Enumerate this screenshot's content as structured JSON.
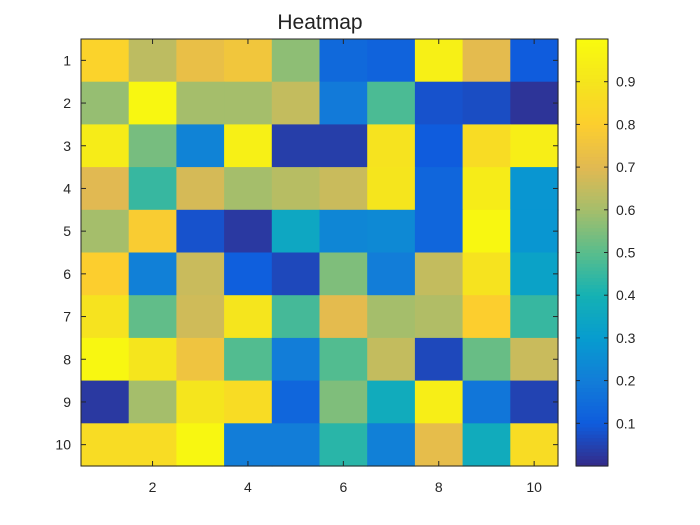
{
  "chart_data": {
    "type": "heatmap",
    "title": "Heatmap",
    "x": [
      1,
      2,
      3,
      4,
      5,
      6,
      7,
      8,
      9,
      10
    ],
    "y": [
      1,
      2,
      3,
      4,
      5,
      6,
      7,
      8,
      9,
      10
    ],
    "x_tick_labels": [
      "2",
      "4",
      "6",
      "8",
      "10"
    ],
    "y_tick_labels": [
      "1",
      "2",
      "3",
      "4",
      "5",
      "6",
      "7",
      "8",
      "9",
      "10"
    ],
    "values": [
      [
        0.82,
        0.64,
        0.73,
        0.76,
        0.57,
        0.14,
        0.12,
        0.95,
        0.71,
        0.1
      ],
      [
        0.58,
        0.98,
        0.6,
        0.6,
        0.65,
        0.19,
        0.48,
        0.08,
        0.07,
        0.02
      ],
      [
        0.93,
        0.54,
        0.22,
        0.95,
        0.04,
        0.04,
        0.89,
        0.1,
        0.86,
        0.94
      ],
      [
        0.7,
        0.45,
        0.68,
        0.6,
        0.63,
        0.66,
        0.9,
        0.13,
        0.93,
        0.28
      ],
      [
        0.6,
        0.79,
        0.08,
        0.03,
        0.35,
        0.23,
        0.24,
        0.13,
        0.98,
        0.28
      ],
      [
        0.8,
        0.21,
        0.66,
        0.11,
        0.06,
        0.55,
        0.2,
        0.65,
        0.89,
        0.33
      ],
      [
        0.89,
        0.51,
        0.67,
        0.9,
        0.47,
        0.71,
        0.6,
        0.62,
        0.8,
        0.45
      ],
      [
        0.98,
        0.9,
        0.75,
        0.49,
        0.2,
        0.49,
        0.65,
        0.06,
        0.52,
        0.66
      ],
      [
        0.03,
        0.6,
        0.9,
        0.86,
        0.13,
        0.55,
        0.37,
        0.94,
        0.18,
        0.05
      ],
      [
        0.86,
        0.86,
        0.98,
        0.2,
        0.2,
        0.43,
        0.21,
        0.72,
        0.37,
        0.86
      ]
    ],
    "colormap": "parula",
    "colorbar": {
      "range": [
        0,
        1
      ],
      "ticks": [
        0.1,
        0.2,
        0.3,
        0.4,
        0.5,
        0.6,
        0.7,
        0.8,
        0.9
      ],
      "tick_labels": [
        "0.1",
        "0.2",
        "0.3",
        "0.4",
        "0.5",
        "0.6",
        "0.7",
        "0.8",
        "0.9"
      ],
      "placement": "right"
    },
    "xlim": [
      0.5,
      10.5
    ],
    "ylim": [
      0.5,
      10.5
    ],
    "y_direction": "reverse",
    "grid": false
  }
}
